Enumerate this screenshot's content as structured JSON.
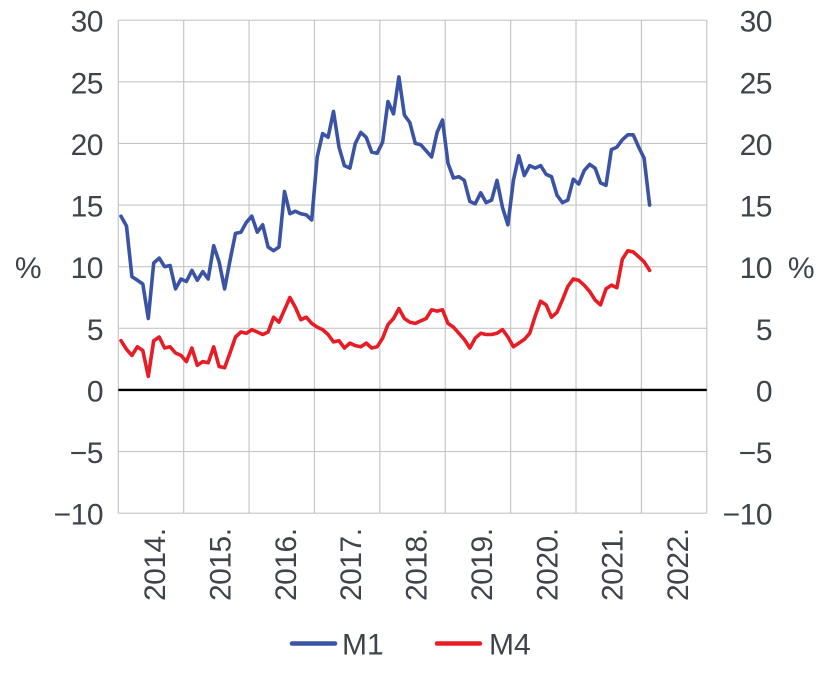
{
  "chart_data": {
    "type": "line",
    "title": "",
    "grid": true,
    "legend_position": "bottom-center",
    "y_axis": {
      "label_left": "%",
      "label_right": "%",
      "min": -10,
      "max": 30,
      "tick_step": 5,
      "tick_labels": [
        "30",
        "25",
        "20",
        "15",
        "10",
        "5",
        "0",
        "−5",
        "−10"
      ],
      "zero_line": true
    },
    "x_axis": {
      "tick_labels": [
        "2014.",
        "2015.",
        "2016.",
        "2017.",
        "2018.",
        "2019.",
        "2020.",
        "2021.",
        "2022."
      ],
      "labels_centered_in_year_bands": true,
      "start_month": "2014-01",
      "end_month": "2022-02"
    },
    "series": [
      {
        "name": "M1",
        "color": "#3A53A5",
        "values": [
          14.1,
          13.3,
          9.2,
          8.9,
          8.6,
          5.8,
          10.3,
          10.7,
          10.0,
          10.1,
          8.2,
          9.0,
          8.8,
          9.7,
          8.9,
          9.6,
          9.0,
          11.7,
          10.4,
          8.2,
          10.5,
          12.7,
          12.8,
          13.6,
          14.1,
          12.8,
          13.4,
          11.6,
          11.3,
          11.6,
          16.1,
          14.3,
          14.5,
          14.3,
          14.2,
          13.8,
          18.9,
          20.8,
          20.5,
          22.6,
          19.7,
          18.2,
          18.0,
          20.0,
          20.9,
          20.5,
          19.3,
          19.2,
          20.1,
          23.4,
          22.4,
          25.4,
          22.3,
          21.7,
          20.0,
          19.9,
          19.4,
          18.9,
          20.9,
          21.9,
          18.4,
          17.2,
          17.3,
          17.0,
          15.3,
          15.1,
          16.0,
          15.2,
          15.4,
          17.0,
          14.8,
          13.4,
          17.0,
          19.0,
          17.4,
          18.2,
          18.0,
          18.2,
          17.5,
          17.3,
          15.8,
          15.2,
          15.4,
          17.1,
          16.7,
          17.8,
          18.3,
          18.0,
          16.8,
          16.6,
          19.5,
          19.7,
          20.3,
          20.7,
          20.7,
          19.7,
          18.8,
          15.0
        ]
      },
      {
        "name": "M4",
        "color": "#E81C25",
        "values": [
          4.0,
          3.3,
          2.8,
          3.5,
          3.2,
          1.1,
          4.0,
          4.3,
          3.4,
          3.5,
          3.0,
          2.8,
          2.3,
          3.4,
          2.0,
          2.3,
          2.2,
          3.5,
          1.9,
          1.8,
          3.0,
          4.3,
          4.7,
          4.6,
          4.9,
          4.7,
          4.5,
          4.7,
          5.9,
          5.5,
          6.5,
          7.5,
          6.7,
          5.7,
          5.9,
          5.4,
          5.1,
          4.9,
          4.5,
          3.9,
          4.0,
          3.4,
          3.8,
          3.6,
          3.5,
          3.8,
          3.4,
          3.5,
          4.2,
          5.3,
          5.8,
          6.6,
          5.8,
          5.5,
          5.4,
          5.6,
          5.8,
          6.5,
          6.4,
          6.5,
          5.4,
          5.1,
          4.6,
          4.1,
          3.4,
          4.2,
          4.6,
          4.5,
          4.5,
          4.6,
          4.9,
          4.3,
          3.5,
          3.8,
          4.1,
          4.6,
          6.0,
          7.2,
          6.9,
          5.9,
          6.3,
          7.3,
          8.4,
          9.0,
          8.9,
          8.5,
          8.0,
          7.3,
          6.9,
          8.2,
          8.5,
          8.3,
          10.6,
          11.3,
          11.2,
          10.8,
          10.4,
          9.7
        ]
      }
    ]
  },
  "legend": {
    "items": [
      {
        "label": "M1",
        "color": "#3A53A5"
      },
      {
        "label": "M4",
        "color": "#E81C25"
      }
    ]
  },
  "colors": {
    "background": "#FFFFFF",
    "grid": "#C6C6C6",
    "plot_border": "#C6C6C6",
    "zero_line": "#000000",
    "axis_text": "#3F444B"
  }
}
